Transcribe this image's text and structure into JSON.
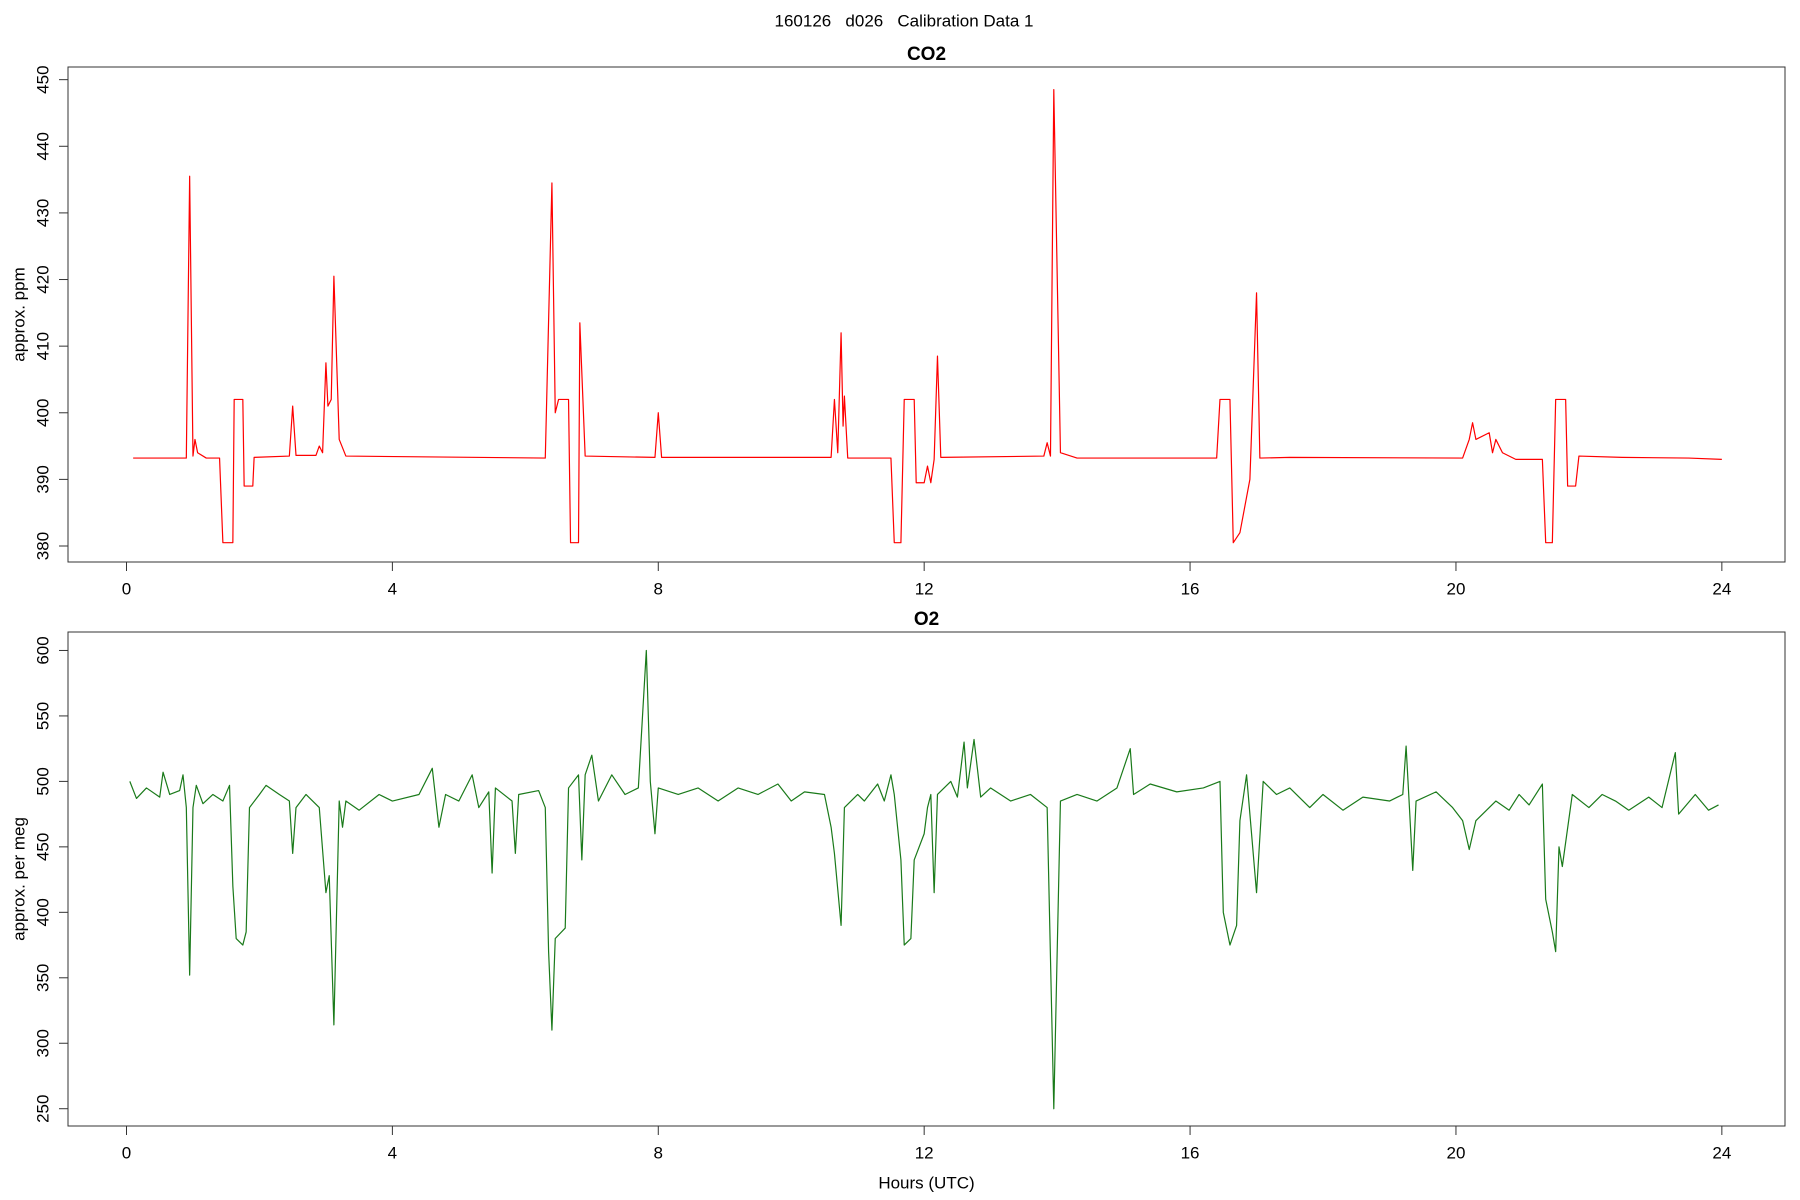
{
  "title": "160126   d026   Calibration Data 1",
  "chart_data": [
    {
      "type": "line",
      "title": "CO2",
      "ylabel": "approx. ppm",
      "color": "#ff0000",
      "xlim": [
        -0.88,
        24.95
      ],
      "ylim": [
        377.6,
        451.9
      ],
      "xticks": [
        0,
        4,
        8,
        12,
        16,
        20,
        24
      ],
      "yticks": [
        380,
        390,
        400,
        410,
        420,
        430,
        440,
        450
      ],
      "x": [
        0.1,
        0.9,
        0.95,
        1.0,
        1.03,
        1.07,
        1.2,
        1.4,
        1.45,
        1.6,
        1.62,
        1.75,
        1.77,
        1.9,
        1.92,
        2.45,
        2.5,
        2.55,
        2.85,
        2.9,
        2.95,
        3.0,
        3.03,
        3.08,
        3.12,
        3.2,
        3.3,
        6.3,
        6.4,
        6.45,
        6.5,
        6.65,
        6.68,
        6.8,
        6.82,
        6.9,
        7.95,
        8.0,
        8.05,
        10.6,
        10.65,
        10.7,
        10.75,
        10.78,
        10.8,
        10.85,
        11.5,
        11.55,
        11.65,
        11.7,
        11.85,
        11.88,
        12.0,
        12.05,
        12.1,
        12.15,
        12.2,
        12.25,
        13.8,
        13.85,
        13.9,
        13.95,
        14.05,
        14.3,
        16.4,
        16.45,
        16.6,
        16.65,
        16.75,
        16.9,
        17.0,
        17.05,
        17.5,
        20.1,
        20.2,
        20.25,
        20.3,
        20.5,
        20.55,
        20.6,
        20.7,
        20.9,
        21.3,
        21.35,
        21.45,
        21.5,
        21.65,
        21.68,
        21.8,
        21.85,
        22.5,
        23.5,
        24.0
      ],
      "values": [
        393.2,
        393.2,
        435.5,
        393.5,
        396,
        394,
        393.2,
        393.2,
        380.5,
        380.5,
        402,
        402,
        389,
        389,
        393.3,
        393.5,
        401,
        393.6,
        393.6,
        395,
        394,
        407.5,
        401,
        402,
        420.5,
        396,
        393.5,
        393.2,
        434.5,
        400,
        402,
        402,
        380.5,
        380.5,
        413.5,
        393.5,
        393.3,
        400,
        393.3,
        393.3,
        402,
        394,
        412,
        398,
        402.5,
        393.2,
        393.2,
        380.5,
        380.5,
        402,
        402,
        389.5,
        389.5,
        392,
        389.5,
        393,
        408.5,
        393.3,
        393.5,
        395.5,
        393.5,
        448.5,
        394,
        393.2,
        393.2,
        402,
        402,
        380.5,
        382,
        390,
        418,
        393.2,
        393.3,
        393.2,
        396,
        398.5,
        396,
        397,
        394,
        396,
        394,
        393,
        393,
        380.5,
        380.5,
        402,
        402,
        389,
        389,
        393.5,
        393.3,
        393.2,
        393
      ]
    },
    {
      "type": "line",
      "title": "O2",
      "ylabel": "approx. per meg",
      "xlabel": "Hours (UTC)",
      "color": "#1a7a1a",
      "xlim": [
        -0.88,
        24.95
      ],
      "ylim": [
        236.8,
        614.1
      ],
      "xticks": [
        0,
        4,
        8,
        12,
        16,
        20,
        24
      ],
      "yticks": [
        250,
        300,
        350,
        400,
        450,
        500,
        550,
        600
      ],
      "x": [
        0.05,
        0.15,
        0.3,
        0.5,
        0.55,
        0.65,
        0.8,
        0.85,
        0.9,
        0.95,
        1.0,
        1.05,
        1.15,
        1.3,
        1.45,
        1.55,
        1.6,
        1.65,
        1.75,
        1.8,
        1.85,
        2.0,
        2.1,
        2.3,
        2.45,
        2.5,
        2.55,
        2.7,
        2.9,
        3.0,
        3.05,
        3.12,
        3.2,
        3.25,
        3.3,
        3.5,
        3.8,
        4.0,
        4.4,
        4.6,
        4.7,
        4.8,
        5.0,
        5.2,
        5.3,
        5.45,
        5.5,
        5.55,
        5.8,
        5.85,
        5.9,
        6.2,
        6.3,
        6.35,
        6.4,
        6.45,
        6.6,
        6.65,
        6.8,
        6.85,
        6.9,
        7.0,
        7.1,
        7.3,
        7.5,
        7.7,
        7.82,
        7.88,
        7.95,
        8.0,
        8.3,
        8.6,
        8.9,
        9.2,
        9.5,
        9.8,
        10.0,
        10.2,
        10.5,
        10.6,
        10.65,
        10.75,
        10.8,
        11.0,
        11.1,
        11.3,
        11.4,
        11.5,
        11.55,
        11.65,
        11.7,
        11.8,
        11.85,
        12.0,
        12.05,
        12.1,
        12.15,
        12.2,
        12.4,
        12.5,
        12.6,
        12.65,
        12.75,
        12.85,
        13.0,
        13.3,
        13.6,
        13.85,
        13.95,
        14.05,
        14.3,
        14.6,
        14.9,
        15.1,
        15.15,
        15.4,
        15.8,
        16.2,
        16.45,
        16.5,
        16.6,
        16.7,
        16.75,
        16.85,
        17.0,
        17.1,
        17.3,
        17.5,
        17.8,
        18.0,
        18.3,
        18.6,
        19.0,
        19.2,
        19.25,
        19.3,
        19.35,
        19.4,
        19.7,
        19.95,
        20.1,
        20.2,
        20.3,
        20.6,
        20.8,
        20.95,
        21.1,
        21.3,
        21.35,
        21.45,
        21.5,
        21.55,
        21.6,
        21.75,
        22.0,
        22.2,
        22.4,
        22.6,
        22.9,
        23.1,
        23.3,
        23.35,
        23.6,
        23.8,
        23.95
      ],
      "values": [
        500,
        487,
        495,
        488,
        507,
        490,
        493,
        505,
        480,
        352,
        480,
        497,
        483,
        490,
        485,
        497,
        420,
        380,
        375,
        385,
        480,
        490,
        497,
        490,
        485,
        445,
        480,
        490,
        480,
        415,
        428,
        314,
        485,
        465,
        485,
        478,
        490,
        485,
        490,
        510,
        465,
        490,
        485,
        505,
        480,
        492,
        430,
        495,
        485,
        445,
        490,
        493,
        480,
        370,
        310,
        380,
        388,
        495,
        505,
        440,
        505,
        520,
        485,
        505,
        490,
        495,
        600,
        500,
        460,
        495,
        490,
        495,
        485,
        495,
        490,
        498,
        485,
        492,
        490,
        465,
        445,
        390,
        480,
        490,
        485,
        498,
        485,
        505,
        490,
        440,
        375,
        380,
        440,
        460,
        480,
        490,
        415,
        490,
        500,
        488,
        530,
        495,
        532,
        488,
        495,
        485,
        490,
        480,
        250,
        485,
        490,
        485,
        495,
        525,
        490,
        498,
        492,
        495,
        500,
        400,
        375,
        390,
        470,
        505,
        415,
        500,
        490,
        495,
        480,
        490,
        478,
        488,
        485,
        490,
        527,
        480,
        432,
        485,
        492,
        480,
        470,
        448,
        470,
        485,
        478,
        490,
        482,
        498,
        410,
        385,
        370,
        450,
        435,
        490,
        480,
        490,
        485,
        478,
        488,
        480,
        522,
        475,
        490,
        478,
        482
      ]
    }
  ]
}
